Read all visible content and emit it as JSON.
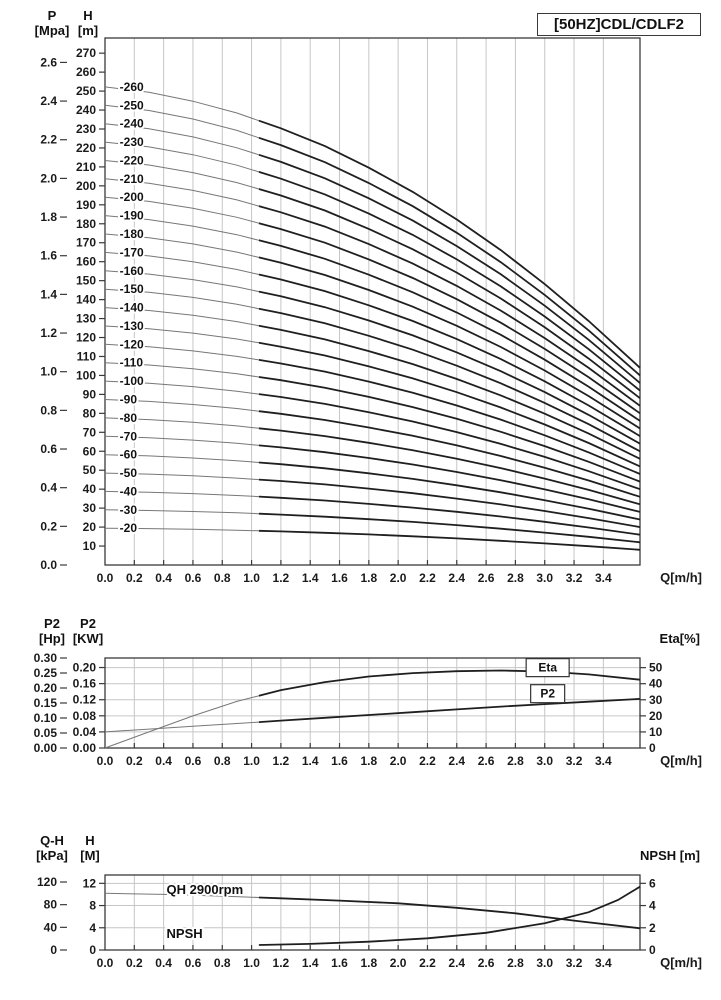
{
  "title": "[50HZ]CDL/CDLF2",
  "x_axis": {
    "label": "Q[m/h]",
    "ticks": [
      "0.0",
      "0.2",
      "0.4",
      "0.6",
      "0.8",
      "1.0",
      "1.2",
      "1.4",
      "1.6",
      "1.8",
      "2.0",
      "2.2",
      "2.4",
      "2.6",
      "2.8",
      "3.0",
      "3.2",
      "3.4"
    ],
    "max": 3.65
  },
  "chart_data": [
    {
      "type": "line",
      "name": "flow-head-curves",
      "y_left_primary": {
        "name": "P",
        "unit": "[Mpa]",
        "ticks": [
          "0.0",
          "0.2",
          "0.4",
          "0.6",
          "0.8",
          "1.0",
          "1.2",
          "1.4",
          "1.6",
          "1.8",
          "2.0",
          "2.2",
          "2.4",
          "2.6"
        ],
        "mpa_to_m": 101.97
      },
      "y_left_secondary": {
        "name": "H",
        "unit": "[m]",
        "ticks": [
          "10",
          "20",
          "30",
          "40",
          "50",
          "60",
          "70",
          "80",
          "90",
          "100",
          "110",
          "120",
          "130",
          "140",
          "150",
          "160",
          "170",
          "180",
          "190",
          "200",
          "210",
          "220",
          "230",
          "240",
          "250",
          "260",
          "270"
        ],
        "max": 278
      },
      "curves": {
        "labels": [
          "-20",
          "-30",
          "-40",
          "-50",
          "-60",
          "-70",
          "-80",
          "-90",
          "-100",
          "-110",
          "-120",
          "-130",
          "-140",
          "-150",
          "-160",
          "-170",
          "-180",
          "-190",
          "-200",
          "-210",
          "-220",
          "-230",
          "-240",
          "-250",
          "-260"
        ],
        "shutoff_heads": [
          20,
          30,
          40,
          50,
          60,
          70,
          80,
          90,
          100,
          110,
          120,
          130,
          140,
          150,
          160,
          170,
          180,
          190,
          200,
          210,
          220,
          230,
          240,
          250,
          260
        ],
        "q": [
          0,
          0.3,
          0.6,
          0.9,
          1.2,
          1.5,
          1.8,
          2.1,
          2.4,
          2.7,
          3.0,
          3.3,
          3.65
        ],
        "head_fraction": [
          0.97,
          0.959,
          0.941,
          0.917,
          0.886,
          0.85,
          0.806,
          0.757,
          0.701,
          0.639,
          0.57,
          0.495,
          0.4
        ],
        "thick_from_q": 1.05,
        "label_q": 0.1
      }
    },
    {
      "type": "line",
      "name": "power-efficiency",
      "y_left_primary": {
        "name": "P2",
        "unit": "[Hp]",
        "ticks": [
          "0.00",
          "0.05",
          "0.10",
          "0.15",
          "0.20",
          "0.25",
          "0.30"
        ],
        "hp_to_kw": 0.7457
      },
      "y_left_secondary": {
        "name": "P2",
        "unit": "[KW]",
        "ticks": [
          "0.00",
          "0.04",
          "0.08",
          "0.12",
          "0.16",
          "0.20"
        ],
        "max": 0.2237
      },
      "y_right": {
        "label": "Eta[%]",
        "ticks": [
          "0",
          "10",
          "20",
          "30",
          "40",
          "50"
        ],
        "max": 56
      },
      "series": [
        {
          "name": "Eta",
          "axis": "eta",
          "x": [
            0,
            0.3,
            0.6,
            0.9,
            1.2,
            1.5,
            1.8,
            2.1,
            2.4,
            2.7,
            3.0,
            3.3,
            3.65
          ],
          "values": [
            0,
            10,
            20,
            29,
            36,
            41,
            44.5,
            46.6,
            47.8,
            48.2,
            47.6,
            45.8,
            42.5
          ]
        },
        {
          "name": "P2",
          "axis": "kw",
          "x": [
            0,
            0.3,
            0.6,
            0.9,
            1.2,
            1.5,
            1.8,
            2.1,
            2.4,
            2.7,
            3.0,
            3.3,
            3.65
          ],
          "values": [
            0.04,
            0.047,
            0.054,
            0.061,
            0.068,
            0.075,
            0.082,
            0.089,
            0.096,
            0.103,
            0.109,
            0.115,
            0.122
          ]
        }
      ],
      "labels": [
        {
          "text": "Eta",
          "q": 3.02,
          "axis": "eta",
          "v": 50,
          "boxed": true
        },
        {
          "text": "P2",
          "q": 3.02,
          "axis": "kw",
          "v": 0.135,
          "boxed": true
        }
      ],
      "thick_from_q": 1.05
    },
    {
      "type": "line",
      "name": "qh-npsh",
      "y_left_primary": {
        "name": "Q-H",
        "unit": "[kPa]",
        "ticks": [
          "0",
          "40",
          "80",
          "120"
        ],
        "kpa_to_m": 0.10197
      },
      "y_left_secondary": {
        "name": "H",
        "unit": "[M]",
        "ticks": [
          "0",
          "4",
          "8",
          "12"
        ],
        "max": 13.5
      },
      "y_right": {
        "label": "NPSH [m]",
        "ticks": [
          "0",
          "2",
          "4",
          "6"
        ],
        "m_per_unit": 2
      },
      "series": [
        {
          "name": "QH 2900rpm",
          "axis": "h",
          "x": [
            0,
            0.4,
            0.8,
            1.2,
            1.6,
            2.0,
            2.4,
            2.8,
            3.2,
            3.65
          ],
          "values": [
            10.2,
            10.0,
            9.7,
            9.3,
            8.9,
            8.4,
            7.6,
            6.6,
            5.3,
            3.9
          ]
        },
        {
          "name": "NPSH",
          "axis": "npsh",
          "x": [
            1.05,
            1.4,
            1.8,
            2.2,
            2.6,
            3.0,
            3.3,
            3.5,
            3.65
          ],
          "values": [
            0.45,
            0.55,
            0.75,
            1.05,
            1.55,
            2.4,
            3.4,
            4.5,
            5.7
          ]
        }
      ],
      "labels": [
        {
          "text": "QH 2900rpm",
          "q": 0.42,
          "axis": "h",
          "v": 10.8
        },
        {
          "text": "NPSH",
          "q": 0.42,
          "axis": "h",
          "v": 2.9
        }
      ],
      "thick_from_q": 1.05
    }
  ]
}
